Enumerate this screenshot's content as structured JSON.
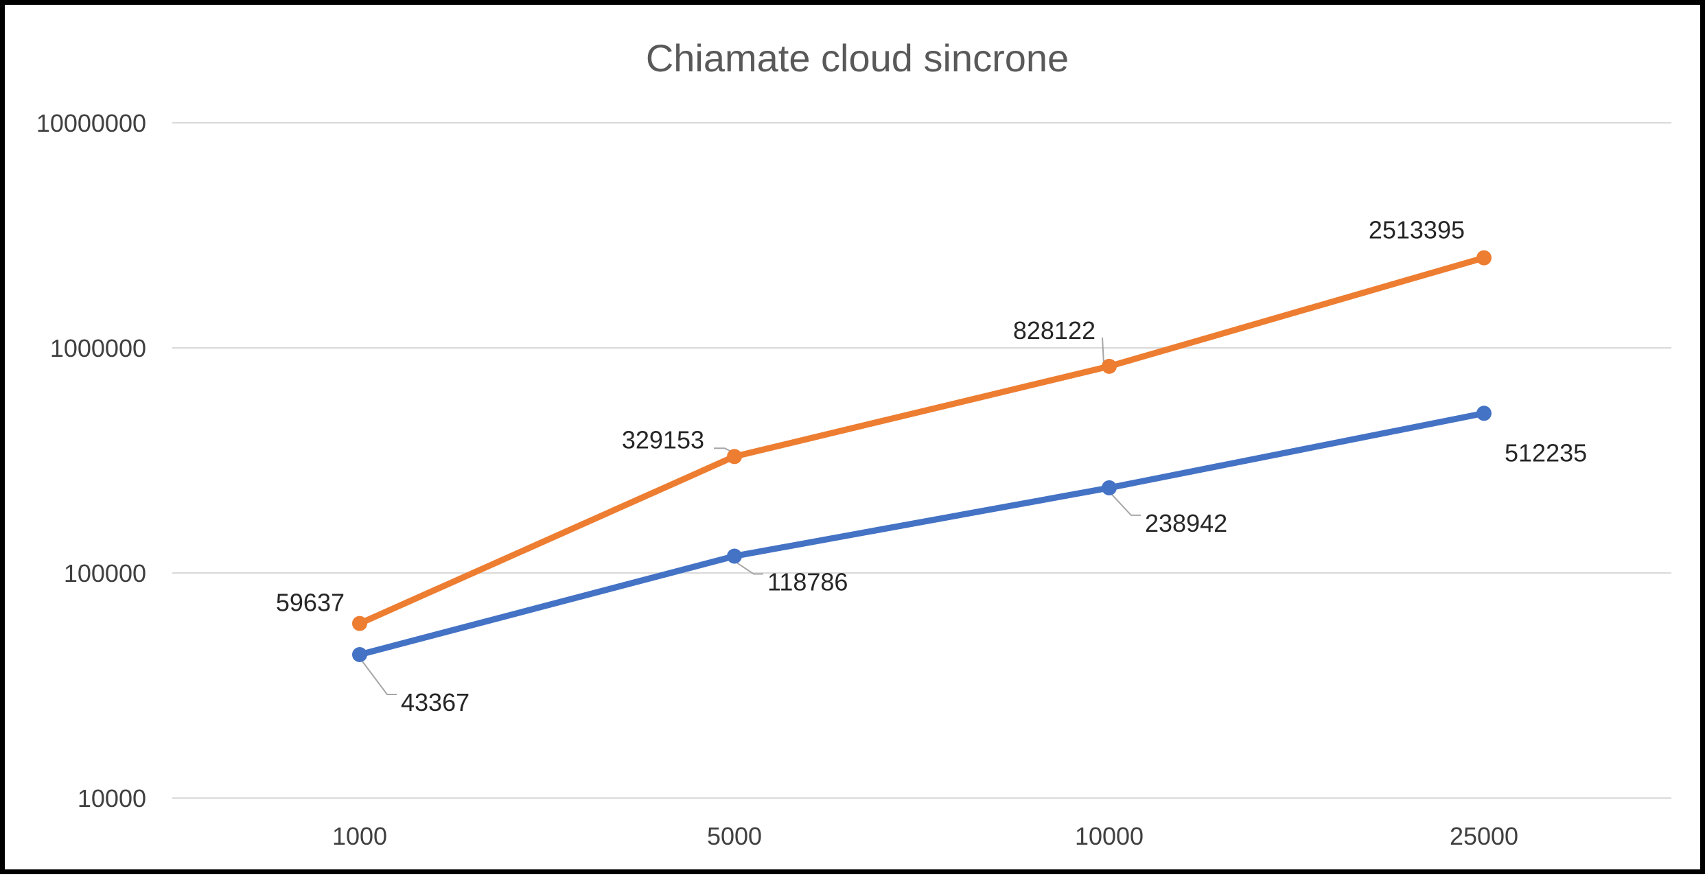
{
  "chart_data": {
    "type": "line",
    "title": "Chiamate cloud sincrone",
    "xlabel": "",
    "ylabel": "",
    "categories": [
      "1000",
      "5000",
      "10000",
      "25000"
    ],
    "y_scale": "log",
    "ylim": [
      10000,
      10000000
    ],
    "y_ticks": [
      10000,
      100000,
      1000000,
      10000000
    ],
    "y_tick_labels": [
      "10000",
      "100000",
      "1000000",
      "10000000"
    ],
    "grid": true,
    "legend": "none",
    "series": [
      {
        "color": "#4472c4",
        "values": [
          43367,
          118786,
          238942,
          512235
        ],
        "labels": [
          "43367",
          "118786",
          "238942",
          "512235"
        ]
      },
      {
        "color": "#ed7d31",
        "values": [
          59637,
          329153,
          828122,
          2513395
        ],
        "labels": [
          "59637",
          "329153",
          "828122",
          "2513395"
        ]
      }
    ]
  }
}
